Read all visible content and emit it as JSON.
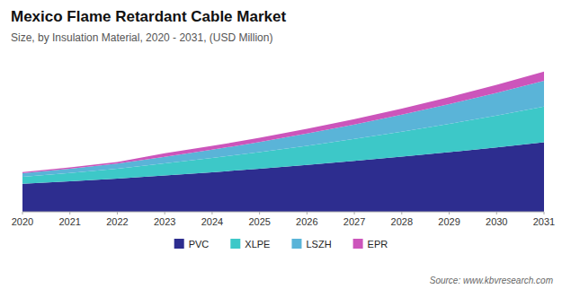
{
  "chart_data": {
    "type": "area",
    "stacked": true,
    "title": "Mexico Flame Retardant Cable Market",
    "subtitle": "Size, by Insulation Material, 2020 - 2031, (USD Million)",
    "annotations": [
      "Source: www.kbvresearch.com"
    ],
    "x": [
      2020,
      2021,
      2022,
      2023,
      2024,
      2025,
      2026,
      2027,
      2028,
      2029,
      2030,
      2031
    ],
    "xlim": [
      2020,
      2031
    ],
    "xticks": [
      2020,
      2021,
      2022,
      2023,
      2024,
      2025,
      2026,
      2027,
      2028,
      2029,
      2030,
      2031
    ],
    "ylim": [
      0,
      1155
    ],
    "tick_labels": "x",
    "grid": false,
    "legend": "bottom",
    "series": [
      {
        "name": "PVC",
        "color": "#2d2d8f",
        "values": [
          220,
          240,
          260,
          285,
          310,
          338,
          368,
          400,
          433,
          468,
          505,
          545
        ]
      },
      {
        "name": "XLPE",
        "color": "#3dc8c8",
        "values": [
          55,
          65,
          78,
          95,
          112,
          130,
          150,
          172,
          196,
          222,
          250,
          280
        ]
      },
      {
        "name": "LSZH",
        "color": "#5ab4d8",
        "values": [
          28,
          33,
          40,
          52,
          65,
          80,
          96,
          113,
          133,
          155,
          178,
          203
        ]
      },
      {
        "name": "EPR",
        "color": "#cc55bb",
        "values": [
          8,
          10,
          13,
          28,
          30,
          33,
          37,
          42,
          48,
          55,
          63,
          72
        ]
      }
    ]
  }
}
